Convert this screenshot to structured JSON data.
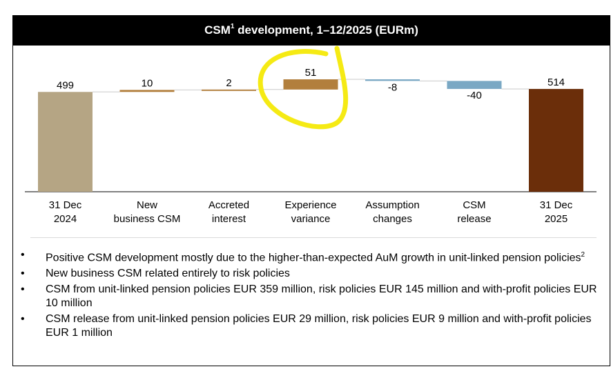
{
  "header": {
    "title_prefix": "CSM",
    "title_sup": "1",
    "title_suffix": " development, 1–12/2025 (EURm)"
  },
  "colors": {
    "start": "#b5a584",
    "increase": "#b27f3d",
    "decrease": "#7aa8c4",
    "end": "#6b2e0a",
    "annotation": "#f5ea14"
  },
  "chart_data": {
    "type": "waterfall",
    "title": "CSM development, 1–12/2025 (EURm)",
    "categories": [
      "31 Dec 2024",
      "New business CSM",
      "Accreted interest",
      "Experience variance",
      "Assumption changes",
      "CSM release",
      "31 Dec 2025"
    ],
    "category_lines": [
      [
        "31 Dec",
        "2024"
      ],
      [
        "New",
        "business CSM"
      ],
      [
        "Accreted",
        "interest"
      ],
      [
        "Experience",
        "variance"
      ],
      [
        "Assumption",
        "changes"
      ],
      [
        "CSM",
        "release"
      ],
      [
        "31 Dec",
        "2025"
      ]
    ],
    "values": [
      499,
      10,
      2,
      51,
      -8,
      -40,
      514
    ],
    "labels": [
      "499",
      "10",
      "2",
      "51",
      "-8",
      "-40",
      "514"
    ],
    "kinds": [
      "total",
      "delta",
      "delta",
      "delta",
      "delta",
      "delta",
      "total"
    ],
    "highlighted_category": "Experience variance",
    "xlabel": "",
    "ylabel": ""
  },
  "bullets": [
    {
      "text": "Positive CSM development mostly due to the higher-than-expected AuM growth in unit-linked pension policies",
      "sup": "2"
    },
    {
      "text": "New business CSM related entirely to risk policies",
      "sup": ""
    },
    {
      "text": "CSM from unit-linked pension policies EUR 359 million, risk policies EUR 145 million and with-profit policies EUR 10 million",
      "sup": ""
    },
    {
      "text": "CSM release from unit-linked pension policies EUR 29 million, risk policies EUR 9 million and with-profit policies EUR 1 million",
      "sup": ""
    }
  ]
}
